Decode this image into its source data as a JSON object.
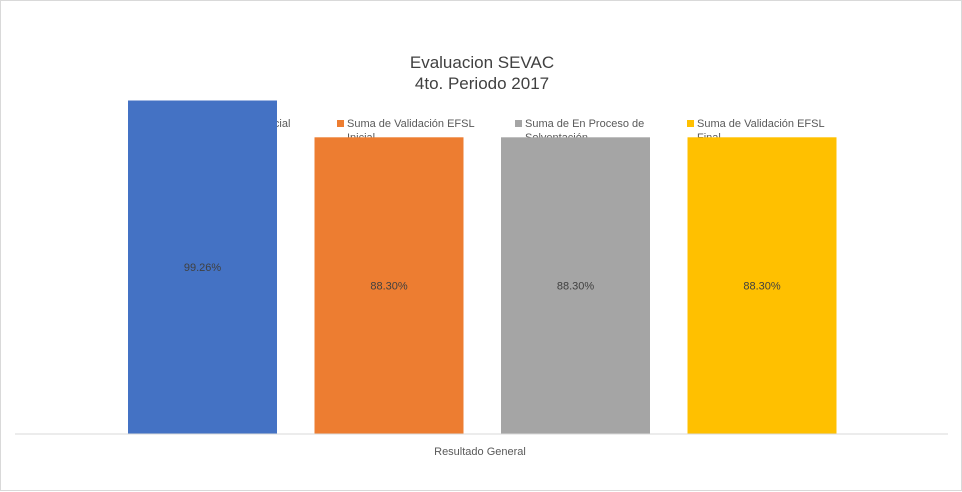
{
  "chart_data": {
    "type": "bar",
    "title": "Evaluacion SEVAC",
    "subtitle": "4to. Periodo 2017",
    "categories": [
      "Resultado General"
    ],
    "xlabel": "",
    "ylabel": "",
    "ylim": [
      0,
      100
    ],
    "grid": false,
    "legend_position": "top",
    "series": [
      {
        "name": "Suma de Llenado Inicial",
        "values": [
          99.26
        ],
        "label": "99.26%",
        "color": "#4472C4"
      },
      {
        "name": "Suma de Validación EFSL Inicial",
        "values": [
          88.3
        ],
        "label": "88.30%",
        "color": "#ED7D31"
      },
      {
        "name": "Suma de En Proceso de Solventación",
        "values": [
          88.3
        ],
        "label": "88.30%",
        "color": "#A5A5A5"
      },
      {
        "name": "Suma de Validación EFSL Final",
        "values": [
          88.3
        ],
        "label": "88.30%",
        "color": "#FFC000"
      }
    ]
  }
}
